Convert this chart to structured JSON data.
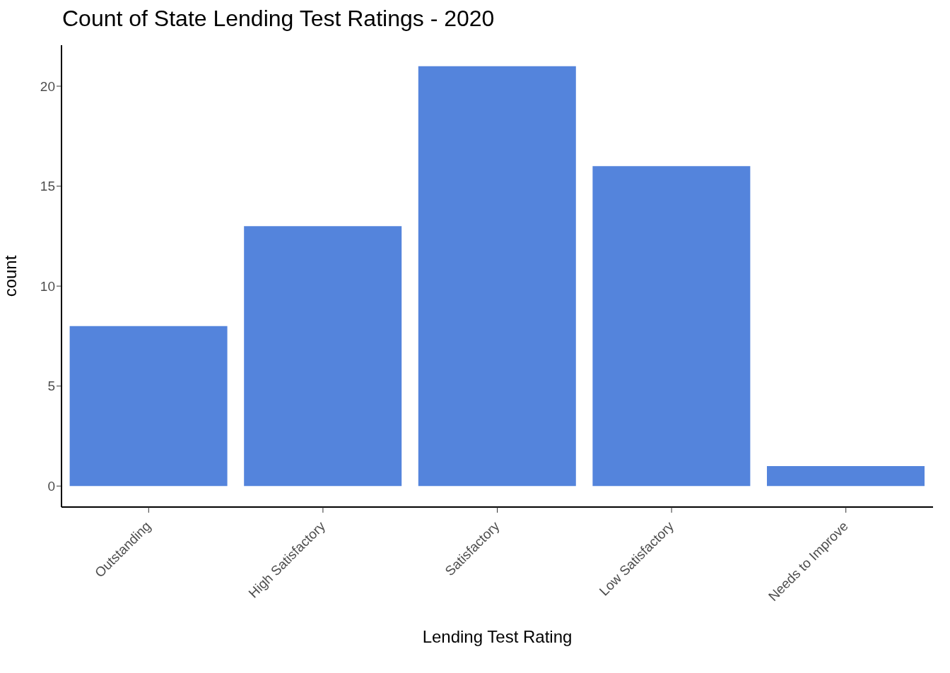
{
  "chart_data": {
    "type": "bar",
    "title": "Count of State Lending Test Ratings - 2020",
    "xlabel": "Lending Test Rating",
    "ylabel": "count",
    "categories": [
      "Outstanding",
      "High Satisfactory",
      "Satisfactory",
      "Low Satisfactory",
      "Needs to Improve"
    ],
    "values": [
      8,
      13,
      21,
      16,
      1
    ],
    "color": "#5484dc",
    "ylim": [
      -1.05,
      22.05
    ],
    "yticks": [
      0,
      5,
      10,
      15,
      20
    ],
    "grid": false
  }
}
